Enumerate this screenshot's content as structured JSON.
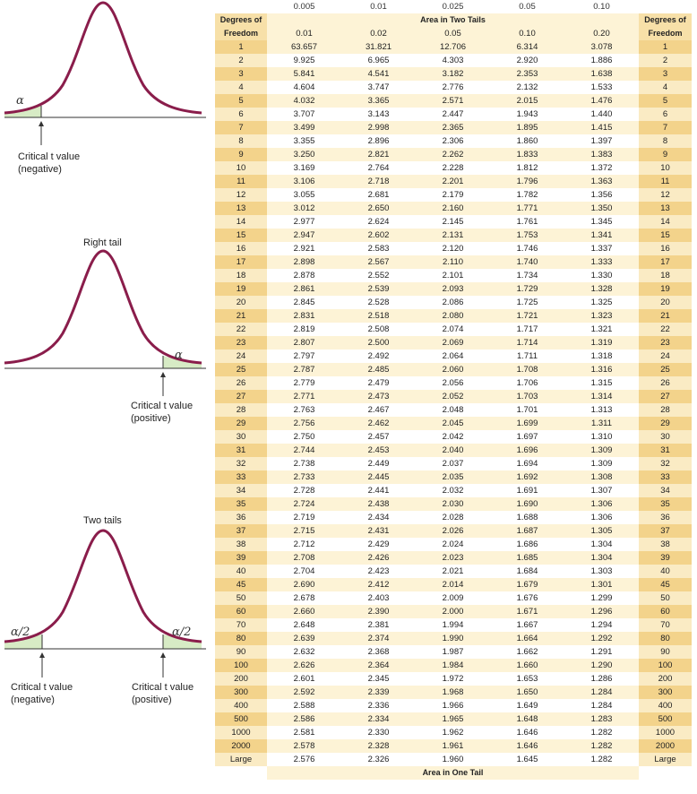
{
  "diagrams": {
    "left_tail": {
      "title": "",
      "alpha_label": "α",
      "critical_line1": "Critical t value",
      "critical_line2": "(negative)"
    },
    "right_tail": {
      "title": "Right tail",
      "alpha_label": "α",
      "critical_line1": "Critical t value",
      "critical_line2": "(positive)"
    },
    "two_tails": {
      "title": "Two tails",
      "alpha_left": "α/2",
      "alpha_right": "α/2",
      "critical_left_line1": "Critical t value",
      "critical_left_line2": "(negative)",
      "critical_right_line1": "Critical t value",
      "critical_right_line2": "(positive)"
    },
    "colors": {
      "curve": "#8a1d4b",
      "shade": "#d7ebc5"
    }
  },
  "table": {
    "one_tail_areas": [
      "0.005",
      "0.01",
      "0.025",
      "0.05",
      "0.10"
    ],
    "df_header_line1": "Degrees of",
    "df_header_line2": "Freedom",
    "two_tail_title": "Area in Two Tails",
    "two_tail_areas": [
      "0.01",
      "0.02",
      "0.05",
      "0.10",
      "0.20"
    ],
    "one_tail_title": "Area in One Tail",
    "rows": [
      {
        "df": "1",
        "v": [
          "63.657",
          "31.821",
          "12.706",
          "6.314",
          "3.078"
        ]
      },
      {
        "df": "2",
        "v": [
          "9.925",
          "6.965",
          "4.303",
          "2.920",
          "1.886"
        ]
      },
      {
        "df": "3",
        "v": [
          "5.841",
          "4.541",
          "3.182",
          "2.353",
          "1.638"
        ]
      },
      {
        "df": "4",
        "v": [
          "4.604",
          "3.747",
          "2.776",
          "2.132",
          "1.533"
        ]
      },
      {
        "df": "5",
        "v": [
          "4.032",
          "3.365",
          "2.571",
          "2.015",
          "1.476"
        ]
      },
      {
        "df": "6",
        "v": [
          "3.707",
          "3.143",
          "2.447",
          "1.943",
          "1.440"
        ]
      },
      {
        "df": "7",
        "v": [
          "3.499",
          "2.998",
          "2.365",
          "1.895",
          "1.415"
        ]
      },
      {
        "df": "8",
        "v": [
          "3.355",
          "2.896",
          "2.306",
          "1.860",
          "1.397"
        ]
      },
      {
        "df": "9",
        "v": [
          "3.250",
          "2.821",
          "2.262",
          "1.833",
          "1.383"
        ]
      },
      {
        "df": "10",
        "v": [
          "3.169",
          "2.764",
          "2.228",
          "1.812",
          "1.372"
        ]
      },
      {
        "df": "11",
        "v": [
          "3.106",
          "2.718",
          "2.201",
          "1.796",
          "1.363"
        ]
      },
      {
        "df": "12",
        "v": [
          "3.055",
          "2.681",
          "2.179",
          "1.782",
          "1.356"
        ]
      },
      {
        "df": "13",
        "v": [
          "3.012",
          "2.650",
          "2.160",
          "1.771",
          "1.350"
        ]
      },
      {
        "df": "14",
        "v": [
          "2.977",
          "2.624",
          "2.145",
          "1.761",
          "1.345"
        ]
      },
      {
        "df": "15",
        "v": [
          "2.947",
          "2.602",
          "2.131",
          "1.753",
          "1.341"
        ]
      },
      {
        "df": "16",
        "v": [
          "2.921",
          "2.583",
          "2.120",
          "1.746",
          "1.337"
        ]
      },
      {
        "df": "17",
        "v": [
          "2.898",
          "2.567",
          "2.110",
          "1.740",
          "1.333"
        ]
      },
      {
        "df": "18",
        "v": [
          "2.878",
          "2.552",
          "2.101",
          "1.734",
          "1.330"
        ]
      },
      {
        "df": "19",
        "v": [
          "2.861",
          "2.539",
          "2.093",
          "1.729",
          "1.328"
        ]
      },
      {
        "df": "20",
        "v": [
          "2.845",
          "2.528",
          "2.086",
          "1.725",
          "1.325"
        ]
      },
      {
        "df": "21",
        "v": [
          "2.831",
          "2.518",
          "2.080",
          "1.721",
          "1.323"
        ]
      },
      {
        "df": "22",
        "v": [
          "2.819",
          "2.508",
          "2.074",
          "1.717",
          "1.321"
        ]
      },
      {
        "df": "23",
        "v": [
          "2.807",
          "2.500",
          "2.069",
          "1.714",
          "1.319"
        ]
      },
      {
        "df": "24",
        "v": [
          "2.797",
          "2.492",
          "2.064",
          "1.711",
          "1.318"
        ]
      },
      {
        "df": "25",
        "v": [
          "2.787",
          "2.485",
          "2.060",
          "1.708",
          "1.316"
        ]
      },
      {
        "df": "26",
        "v": [
          "2.779",
          "2.479",
          "2.056",
          "1.706",
          "1.315"
        ]
      },
      {
        "df": "27",
        "v": [
          "2.771",
          "2.473",
          "2.052",
          "1.703",
          "1.314"
        ]
      },
      {
        "df": "28",
        "v": [
          "2.763",
          "2.467",
          "2.048",
          "1.701",
          "1.313"
        ]
      },
      {
        "df": "29",
        "v": [
          "2.756",
          "2.462",
          "2.045",
          "1.699",
          "1.311"
        ]
      },
      {
        "df": "30",
        "v": [
          "2.750",
          "2.457",
          "2.042",
          "1.697",
          "1.310"
        ]
      },
      {
        "df": "31",
        "v": [
          "2.744",
          "2.453",
          "2.040",
          "1.696",
          "1.309"
        ]
      },
      {
        "df": "32",
        "v": [
          "2.738",
          "2.449",
          "2.037",
          "1.694",
          "1.309"
        ]
      },
      {
        "df": "33",
        "v": [
          "2.733",
          "2.445",
          "2.035",
          "1.692",
          "1.308"
        ]
      },
      {
        "df": "34",
        "v": [
          "2.728",
          "2.441",
          "2.032",
          "1.691",
          "1.307"
        ]
      },
      {
        "df": "35",
        "v": [
          "2.724",
          "2.438",
          "2.030",
          "1.690",
          "1.306"
        ]
      },
      {
        "df": "36",
        "v": [
          "2.719",
          "2.434",
          "2.028",
          "1.688",
          "1.306"
        ]
      },
      {
        "df": "37",
        "v": [
          "2.715",
          "2.431",
          "2.026",
          "1.687",
          "1.305"
        ]
      },
      {
        "df": "38",
        "v": [
          "2.712",
          "2.429",
          "2.024",
          "1.686",
          "1.304"
        ]
      },
      {
        "df": "39",
        "v": [
          "2.708",
          "2.426",
          "2.023",
          "1.685",
          "1.304"
        ]
      },
      {
        "df": "40",
        "v": [
          "2.704",
          "2.423",
          "2.021",
          "1.684",
          "1.303"
        ]
      },
      {
        "df": "45",
        "v": [
          "2.690",
          "2.412",
          "2.014",
          "1.679",
          "1.301"
        ]
      },
      {
        "df": "50",
        "v": [
          "2.678",
          "2.403",
          "2.009",
          "1.676",
          "1.299"
        ]
      },
      {
        "df": "60",
        "v": [
          "2.660",
          "2.390",
          "2.000",
          "1.671",
          "1.296"
        ]
      },
      {
        "df": "70",
        "v": [
          "2.648",
          "2.381",
          "1.994",
          "1.667",
          "1.294"
        ]
      },
      {
        "df": "80",
        "v": [
          "2.639",
          "2.374",
          "1.990",
          "1.664",
          "1.292"
        ]
      },
      {
        "df": "90",
        "v": [
          "2.632",
          "2.368",
          "1.987",
          "1.662",
          "1.291"
        ]
      },
      {
        "df": "100",
        "v": [
          "2.626",
          "2.364",
          "1.984",
          "1.660",
          "1.290"
        ]
      },
      {
        "df": "200",
        "v": [
          "2.601",
          "2.345",
          "1.972",
          "1.653",
          "1.286"
        ]
      },
      {
        "df": "300",
        "v": [
          "2.592",
          "2.339",
          "1.968",
          "1.650",
          "1.284"
        ]
      },
      {
        "df": "400",
        "v": [
          "2.588",
          "2.336",
          "1.966",
          "1.649",
          "1.284"
        ]
      },
      {
        "df": "500",
        "v": [
          "2.586",
          "2.334",
          "1.965",
          "1.648",
          "1.283"
        ]
      },
      {
        "df": "1000",
        "v": [
          "2.581",
          "2.330",
          "1.962",
          "1.646",
          "1.282"
        ]
      },
      {
        "df": "2000",
        "v": [
          "2.578",
          "2.328",
          "1.961",
          "1.646",
          "1.282"
        ]
      },
      {
        "df": "Large",
        "v": [
          "2.576",
          "2.326",
          "1.960",
          "1.645",
          "1.282"
        ]
      }
    ]
  }
}
